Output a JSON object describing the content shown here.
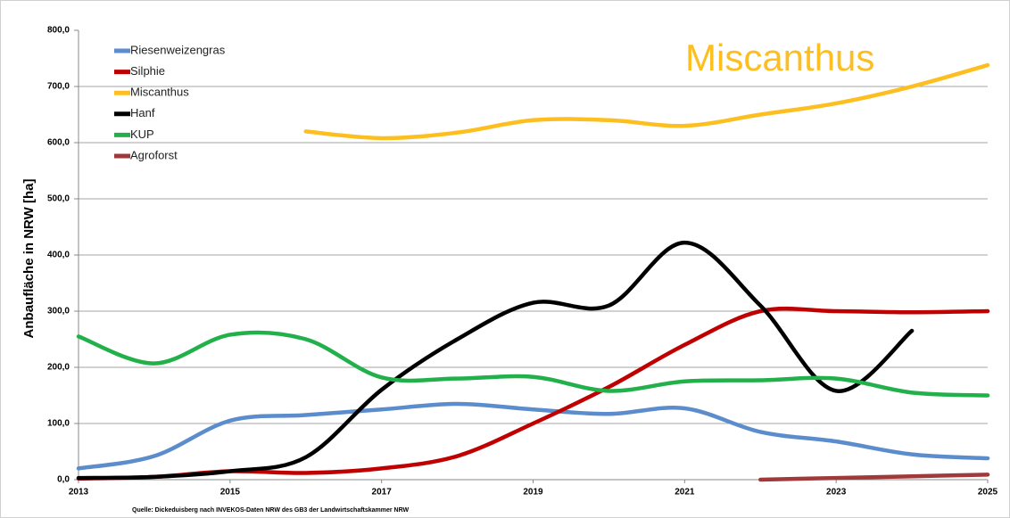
{
  "chart_data": {
    "type": "line",
    "y_label": "Anbaufläche in NRW [ha]",
    "annotation": "Miscanthus",
    "source": "Quelle: Dickeduisberg nach INVEKOS-Daten NRW des GB3 der Landwirtschaftskammer NRW",
    "x": [
      2013,
      2014,
      2015,
      2016,
      2017,
      2018,
      2019,
      2020,
      2021,
      2022,
      2023,
      2024,
      2025
    ],
    "xlim": [
      2013,
      2025
    ],
    "xticks": [
      2013,
      2015,
      2017,
      2019,
      2021,
      2023,
      2025
    ],
    "ylim": [
      0,
      800
    ],
    "yticks": [
      {
        "value": 0,
        "label": "0,0"
      },
      {
        "value": 100,
        "label": "100,0"
      },
      {
        "value": 200,
        "label": "200,0"
      },
      {
        "value": 300,
        "label": "300,0"
      },
      {
        "value": 400,
        "label": "400,0"
      },
      {
        "value": 500,
        "label": "500,0"
      },
      {
        "value": 600,
        "label": "600,0"
      },
      {
        "value": 700,
        "label": "700,0"
      },
      {
        "value": 800,
        "label": "800,0"
      }
    ],
    "grid": true,
    "legend": "upper left",
    "series": [
      {
        "name": "Riesenweizengras",
        "color": "#5b8ccc",
        "values": [
          20,
          42,
          105,
          115,
          125,
          135,
          125,
          117,
          127,
          85,
          68,
          45,
          38
        ]
      },
      {
        "name": "Silphie",
        "color": "#c00000",
        "values": [
          2,
          5,
          15,
          12,
          20,
          42,
          100,
          165,
          240,
          300,
          300,
          298,
          300
        ]
      },
      {
        "name": "Miscanthus",
        "color": "#fdbf1f",
        "values": [
          null,
          null,
          null,
          620,
          608,
          618,
          640,
          640,
          630,
          650,
          670,
          700,
          738
        ]
      },
      {
        "name": "Hanf",
        "color": "#000000",
        "values": [
          3,
          5,
          15,
          40,
          160,
          250,
          315,
          310,
          422,
          310,
          158,
          265,
          null
        ]
      },
      {
        "name": "KUP",
        "color": "#22b04a",
        "values": [
          255,
          207,
          258,
          250,
          182,
          180,
          183,
          158,
          175,
          177,
          180,
          155,
          150
        ]
      },
      {
        "name": "Agroforst",
        "color": "#a03a3a",
        "values": [
          null,
          null,
          null,
          null,
          null,
          null,
          null,
          null,
          null,
          0,
          3,
          6,
          9
        ]
      }
    ]
  }
}
